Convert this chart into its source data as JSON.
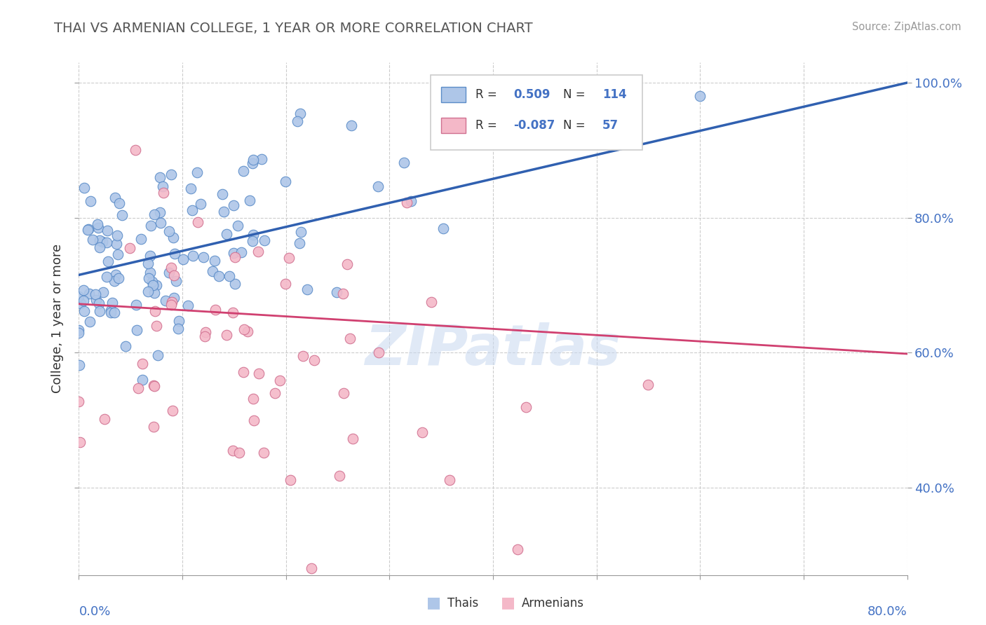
{
  "title": "THAI VS ARMENIAN COLLEGE, 1 YEAR OR MORE CORRELATION CHART",
  "source_text": "Source: ZipAtlas.com",
  "ylabel": "College, 1 year or more",
  "xmin": 0.0,
  "xmax": 0.8,
  "ymin": 0.27,
  "ymax": 1.03,
  "yticks": [
    0.4,
    0.6,
    0.8,
    1.0
  ],
  "ytick_labels": [
    "40.0%",
    "60.0%",
    "80.0%",
    "100.0%"
  ],
  "xtick_positions": [
    0.0,
    0.1,
    0.2,
    0.3,
    0.4,
    0.5,
    0.6,
    0.7,
    0.8
  ],
  "thai_fill_color": "#aec6e8",
  "thai_edge_color": "#5b8cc8",
  "armenian_fill_color": "#f4b8c8",
  "armenian_edge_color": "#d07090",
  "thai_line_color": "#3060b0",
  "armenian_line_color": "#d04070",
  "legend_R_thai": "0.509",
  "legend_N_thai": "114",
  "legend_R_armenian": "-0.087",
  "legend_N_armenian": "57",
  "watermark": "ZIPatlas",
  "watermark_color": "#c8d8f0",
  "thai_line_x0": 0.0,
  "thai_line_y0": 0.715,
  "thai_line_x1": 0.8,
  "thai_line_y1": 1.0,
  "armenian_line_x0": 0.0,
  "armenian_line_y0": 0.672,
  "armenian_line_x1": 0.8,
  "armenian_line_y1": 0.598,
  "grid_color": "#cccccc",
  "grid_linestyle": "--",
  "title_color": "#555555",
  "source_color": "#999999",
  "label_color": "#333333",
  "axis_label_blue": "#4472c4"
}
